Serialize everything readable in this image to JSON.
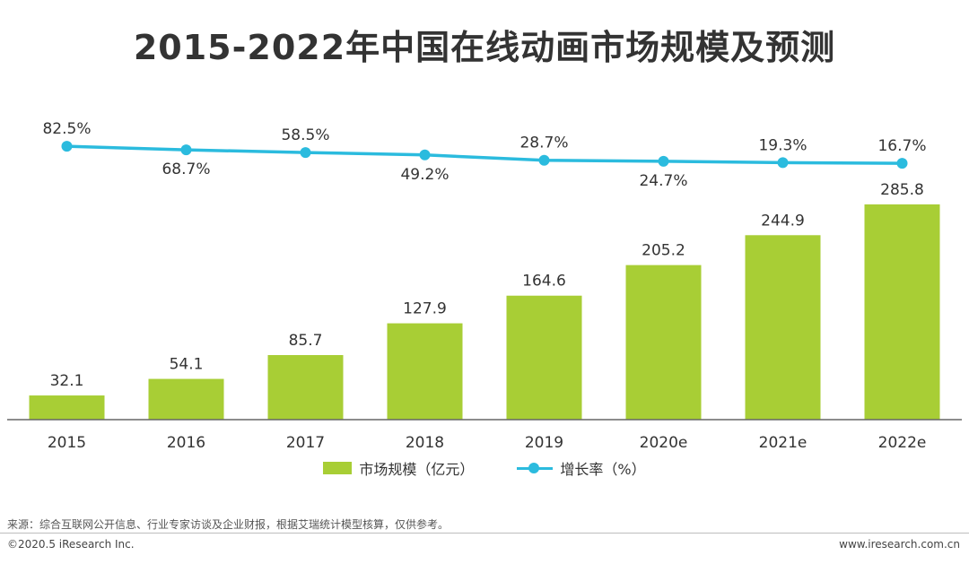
{
  "chart_data": {
    "type": "bar+line",
    "title": "2015-2022年中国在线动画市场规模及预测",
    "categories": [
      "2015",
      "2016",
      "2017",
      "2018",
      "2019",
      "2020e",
      "2021e",
      "2022e"
    ],
    "series": [
      {
        "name": "市场规模（亿元）",
        "type": "bar",
        "values": [
          32.1,
          54.1,
          85.7,
          127.9,
          164.6,
          205.2,
          244.9,
          285.8
        ],
        "labels": [
          "32.1",
          "54.1",
          "85.7",
          "127.9",
          "164.6",
          "205.2",
          "244.9",
          "285.8"
        ]
      },
      {
        "name": "增长率（%）",
        "type": "line",
        "values": [
          82.5,
          68.7,
          58.5,
          49.2,
          28.7,
          24.7,
          19.3,
          16.7
        ],
        "labels": [
          "82.5%",
          "68.7%",
          "58.5%",
          "49.2%",
          "28.7%",
          "24.7%",
          "19.3%",
          "16.7%"
        ],
        "label_position": [
          "above",
          "below",
          "above",
          "below",
          "above",
          "below",
          "above",
          "above"
        ]
      }
    ],
    "ylim_bar": [
      0,
      300
    ],
    "grid": false,
    "legend_position": "bottom-center"
  },
  "colors": {
    "bar": "#A8CE35",
    "line": "#2BBBDE",
    "text": "#333333",
    "axis": "#666666"
  },
  "source": "来源：综合互联网公开信息、行业专家访谈及企业财报，根据艾瑞统计模型核算，仅供参考。",
  "copyright": "©2020.5 iResearch Inc.",
  "website": "www.iresearch.com.cn"
}
